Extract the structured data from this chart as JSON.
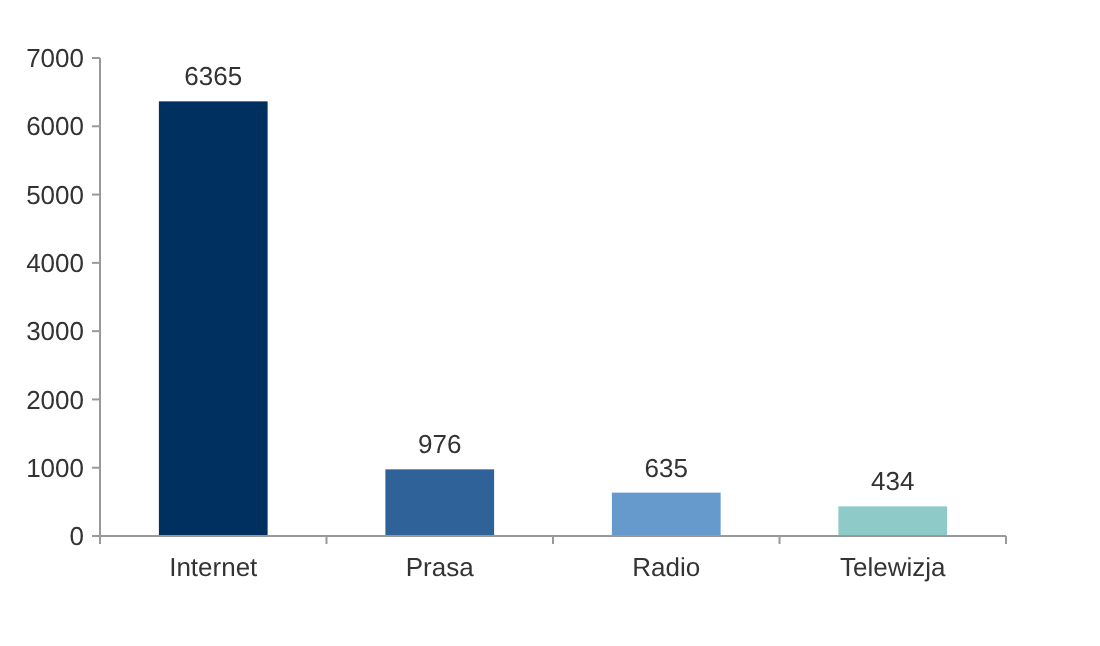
{
  "chart_data": {
    "type": "bar",
    "categories": [
      "Internet",
      "Prasa",
      "Radio",
      "Telewizja"
    ],
    "values": [
      6365,
      976,
      635,
      434
    ],
    "colors": [
      "#00305f",
      "#2e6299",
      "#6699cc",
      "#8ecbc8"
    ],
    "ylim": [
      0,
      7000
    ],
    "yticks": [
      0,
      1000,
      2000,
      3000,
      4000,
      5000,
      6000,
      7000
    ],
    "data_labels": true,
    "grid": false
  }
}
